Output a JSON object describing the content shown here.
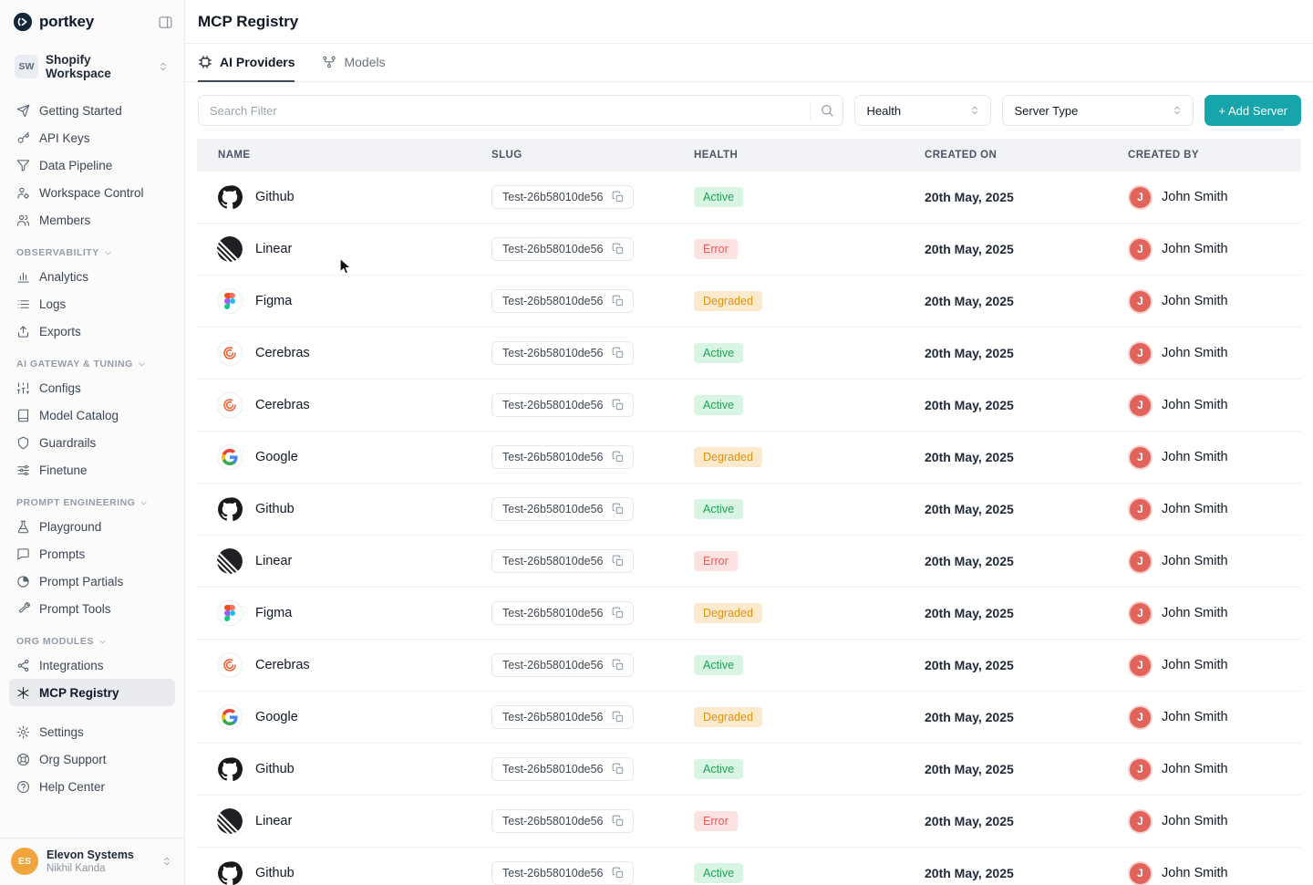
{
  "colors": {
    "accent": "#16A5AB",
    "health": {
      "active": {
        "bg": "#D8F5E3",
        "text": "#1CA352"
      },
      "error": {
        "bg": "#FCE2E1",
        "text": "#EC5B55"
      },
      "degraded": {
        "bg": "#FBEACD",
        "text": "#E2920E"
      }
    },
    "row_avatar": "#E2625C",
    "footer_avatar": "#EFA43C"
  },
  "sidebar": {
    "logo_text": "portkey",
    "workspace": {
      "initials": "SW",
      "name": "Shopify Workspace"
    },
    "sections": [
      {
        "header": null,
        "items": [
          {
            "icon": "send",
            "label": "Getting Started"
          },
          {
            "icon": "key",
            "label": "API Keys"
          },
          {
            "icon": "pipeline",
            "label": "Data Pipeline"
          },
          {
            "icon": "workspace-control",
            "label": "Workspace Control"
          },
          {
            "icon": "members",
            "label": "Members"
          }
        ]
      },
      {
        "header": "OBSERVABILITY",
        "items": [
          {
            "icon": "analytics",
            "label": "Analytics"
          },
          {
            "icon": "logs",
            "label": "Logs"
          },
          {
            "icon": "exports",
            "label": "Exports"
          }
        ]
      },
      {
        "header": "AI GATEWAY & TUNING",
        "items": [
          {
            "icon": "configs",
            "label": "Configs"
          },
          {
            "icon": "model-catalog",
            "label": "Model Catalog"
          },
          {
            "icon": "guardrails",
            "label": "Guardrails"
          },
          {
            "icon": "finetune",
            "label": "Finetune"
          }
        ]
      },
      {
        "header": "PROMPT ENGINEERING",
        "items": [
          {
            "icon": "playground",
            "label": "Playground"
          },
          {
            "icon": "prompts",
            "label": "Prompts"
          },
          {
            "icon": "prompt-partials",
            "label": "Prompt Partials"
          },
          {
            "icon": "prompt-tools",
            "label": "Prompt Tools"
          }
        ]
      },
      {
        "header": "ORG MODULES",
        "items": [
          {
            "icon": "integrations",
            "label": "Integrations"
          },
          {
            "icon": "mcp-registry",
            "label": "MCP Registry",
            "active": true
          }
        ]
      },
      {
        "header": null,
        "items": [
          {
            "icon": "settings",
            "label": "Settings"
          },
          {
            "icon": "org-support",
            "label": "Org Support"
          },
          {
            "icon": "help-center",
            "label": "Help Center"
          }
        ]
      }
    ],
    "footer": {
      "initials": "ES",
      "org": "Elevon Systems",
      "user": "Nikhil Kanda"
    }
  },
  "header": {
    "title": "MCP Registry"
  },
  "tabs": [
    {
      "label": "AI Providers",
      "active": true
    },
    {
      "label": "Models",
      "active": false
    }
  ],
  "filters": {
    "search_placeholder": "Search Filter",
    "health": "Health",
    "server_type": "Server Type",
    "add_server": "+ Add Server"
  },
  "table": {
    "columns": [
      "NAME",
      "SLUG",
      "HEALTH",
      "CREATED ON",
      "CREATED BY"
    ],
    "rows": [
      {
        "name": "Github",
        "icon": "github",
        "slug": "Test-26b58010de56",
        "health": "Active",
        "created_on": "20th May, 2025",
        "created_by": "John Smith",
        "avatar_initial": "J"
      },
      {
        "name": "Linear",
        "icon": "linear",
        "slug": "Test-26b58010de56",
        "health": "Error",
        "created_on": "20th May, 2025",
        "created_by": "John Smith",
        "avatar_initial": "J"
      },
      {
        "name": "Figma",
        "icon": "figma",
        "slug": "Test-26b58010de56",
        "health": "Degraded",
        "created_on": "20th May, 2025",
        "created_by": "John Smith",
        "avatar_initial": "J"
      },
      {
        "name": "Cerebras",
        "icon": "cerebras",
        "slug": "Test-26b58010de56",
        "health": "Active",
        "created_on": "20th May, 2025",
        "created_by": "John Smith",
        "avatar_initial": "J"
      },
      {
        "name": "Cerebras",
        "icon": "cerebras",
        "slug": "Test-26b58010de56",
        "health": "Active",
        "created_on": "20th May, 2025",
        "created_by": "John Smith",
        "avatar_initial": "J"
      },
      {
        "name": "Google",
        "icon": "google",
        "slug": "Test-26b58010de56",
        "health": "Degraded",
        "created_on": "20th May, 2025",
        "created_by": "John Smith",
        "avatar_initial": "J"
      },
      {
        "name": "Github",
        "icon": "github",
        "slug": "Test-26b58010de56",
        "health": "Active",
        "created_on": "20th May, 2025",
        "created_by": "John Smith",
        "avatar_initial": "J"
      },
      {
        "name": "Linear",
        "icon": "linear",
        "slug": "Test-26b58010de56",
        "health": "Error",
        "created_on": "20th May, 2025",
        "created_by": "John Smith",
        "avatar_initial": "J"
      },
      {
        "name": "Figma",
        "icon": "figma",
        "slug": "Test-26b58010de56",
        "health": "Degraded",
        "created_on": "20th May, 2025",
        "created_by": "John Smith",
        "avatar_initial": "J"
      },
      {
        "name": "Cerebras",
        "icon": "cerebras",
        "slug": "Test-26b58010de56",
        "health": "Active",
        "created_on": "20th May, 2025",
        "created_by": "John Smith",
        "avatar_initial": "J"
      },
      {
        "name": "Google",
        "icon": "google",
        "slug": "Test-26b58010de56",
        "health": "Degraded",
        "created_on": "20th May, 2025",
        "created_by": "John Smith",
        "avatar_initial": "J"
      },
      {
        "name": "Github",
        "icon": "github",
        "slug": "Test-26b58010de56",
        "health": "Active",
        "created_on": "20th May, 2025",
        "created_by": "John Smith",
        "avatar_initial": "J"
      },
      {
        "name": "Linear",
        "icon": "linear",
        "slug": "Test-26b58010de56",
        "health": "Error",
        "created_on": "20th May, 2025",
        "created_by": "John Smith",
        "avatar_initial": "J"
      },
      {
        "name": "Github",
        "icon": "github",
        "slug": "Test-26b58010de56",
        "health": "Active",
        "created_on": "20th May, 2025",
        "created_by": "John Smith",
        "avatar_initial": "J"
      }
    ]
  }
}
